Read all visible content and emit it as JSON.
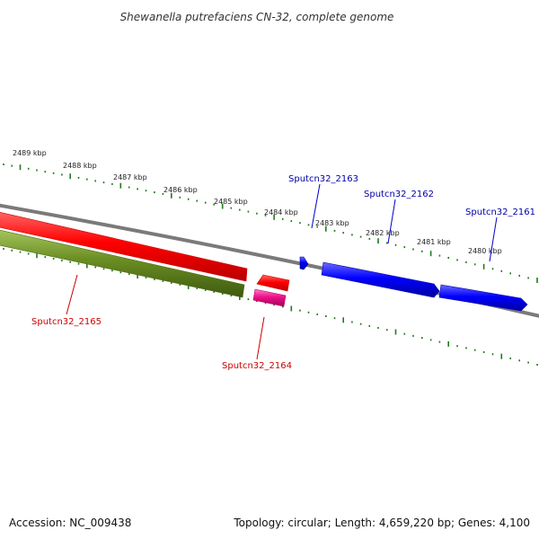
{
  "title": "Shewanella putrefaciens CN-32, complete genome",
  "footer": {
    "accession": "Accession: NC_009438",
    "summary": "Topology: circular; Length: 4,659,220 bp; Genes: 4,100"
  },
  "colors": {
    "backbone": "#7a7a7a",
    "tick": "#1f7a1f",
    "forward_gene": "#0000ee",
    "reverse_gene": "#ee0000",
    "reverse_gene_alt": "#ee1188",
    "olive_track": "#6b8e23",
    "forward_label": "#0000aa",
    "reverse_label": "#cc0000"
  },
  "scale": {
    "unit": "kbp",
    "kbp_labels": [
      "2489 kbp",
      "2488 kbp",
      "2487 kbp",
      "2486 kbp",
      "2485 kbp",
      "2484 kbp",
      "2483 kbp",
      "2482 kbp",
      "2481 kbp",
      "2480 kbp"
    ]
  },
  "genes": [
    {
      "name": "Sputcn32_2161",
      "strand": "forward"
    },
    {
      "name": "Sputcn32_2162",
      "strand": "forward"
    },
    {
      "name": "Sputcn32_2163",
      "strand": "forward"
    },
    {
      "name": "Sputcn32_2164",
      "strand": "reverse"
    },
    {
      "name": "Sputcn32_2165",
      "strand": "reverse"
    }
  ]
}
